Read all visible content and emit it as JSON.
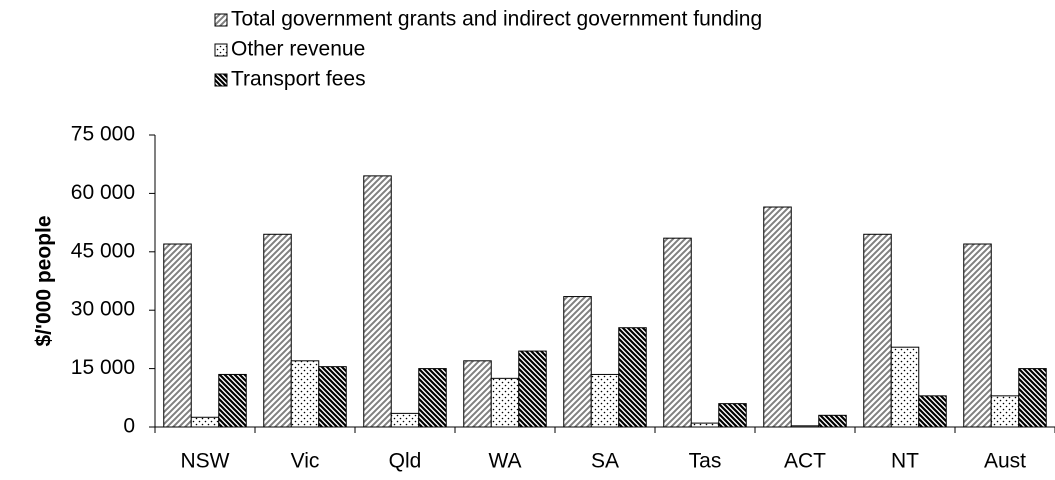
{
  "chart_data": {
    "type": "bar",
    "y_label": "$/'000 people",
    "categories": [
      "NSW",
      "Vic",
      "Qld",
      "WA",
      "SA",
      "Tas",
      "ACT",
      "NT",
      "Aust"
    ],
    "series": [
      {
        "name": "Total government grants and indirect government funding",
        "color": "#808080",
        "values": [
          47000,
          49500,
          64500,
          17000,
          33500,
          48500,
          56500,
          49500,
          47000
        ]
      },
      {
        "name": "Other revenue",
        "color": "#000000",
        "values": [
          2500,
          17000,
          3500,
          12500,
          13500,
          1000,
          300,
          20500,
          8000
        ]
      },
      {
        "name": "Transport fees",
        "color": "#000000",
        "values": [
          13500,
          15500,
          15000,
          19500,
          25500,
          6000,
          3000,
          8000,
          15000
        ]
      }
    ],
    "ylim": [
      0,
      75000
    ],
    "yticks": [
      {
        "value": 0,
        "label": "0"
      },
      {
        "value": 15000,
        "label": "15 000"
      },
      {
        "value": 30000,
        "label": "30 000"
      },
      {
        "value": 45000,
        "label": "45 000"
      },
      {
        "value": 60000,
        "label": "60 000"
      },
      {
        "value": 75000,
        "label": "75 000"
      }
    ],
    "grid": false
  }
}
